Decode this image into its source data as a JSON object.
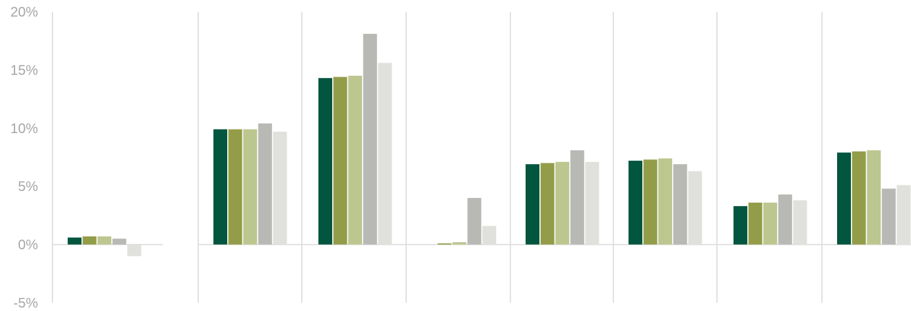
{
  "chart_data": {
    "type": "bar",
    "title": "",
    "xlabel": "",
    "ylabel": "",
    "ylim": [
      -5,
      20
    ],
    "yticks": [
      -5,
      0,
      5,
      10,
      15,
      20
    ],
    "ytick_labels": [
      "-5%",
      "0%",
      "5%",
      "10%",
      "15%",
      "20%"
    ],
    "grid": "vertical separators between groups",
    "legend": "none",
    "categories": [
      "",
      "",
      "",
      "",
      "",
      "",
      "",
      ""
    ],
    "series": [
      {
        "color": "#02553f",
        "values": [
          0.6,
          9.9,
          14.3,
          null,
          6.9,
          7.2,
          3.3,
          7.9
        ]
      },
      {
        "color": "#939c48",
        "values": [
          0.7,
          9.9,
          14.4,
          0.1,
          7.0,
          7.3,
          3.6,
          8.0
        ]
      },
      {
        "color": "#bcc68f",
        "values": [
          0.7,
          9.9,
          14.5,
          0.2,
          7.1,
          7.4,
          3.6,
          8.1
        ]
      },
      {
        "color": "#b8b9b4",
        "values": [
          0.5,
          10.4,
          18.1,
          4.0,
          8.1,
          6.9,
          4.3,
          4.8
        ]
      },
      {
        "color": "#e0e1dc",
        "values": [
          -1.0,
          9.7,
          15.6,
          1.6,
          7.1,
          6.3,
          3.8,
          5.1
        ]
      }
    ]
  }
}
